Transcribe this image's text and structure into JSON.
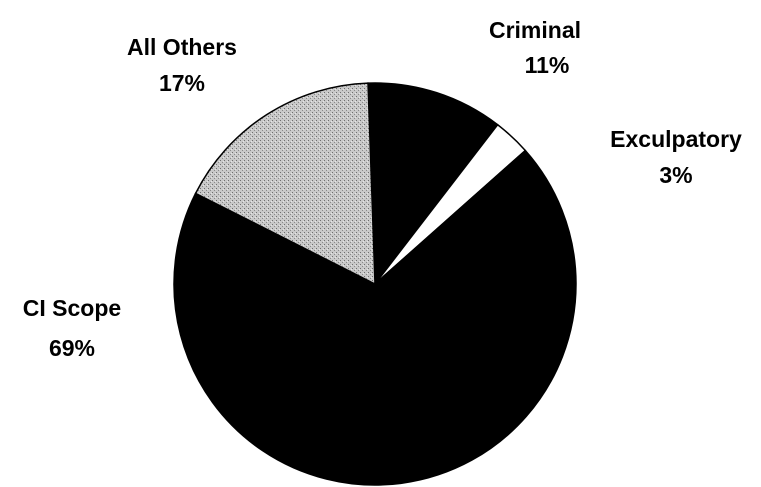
{
  "chart_data": {
    "type": "pie",
    "start_angle_deg": -2,
    "direction": "clockwise",
    "slices": [
      {
        "name": "Criminal",
        "value": 11,
        "label": "11%",
        "color": "#000000",
        "texture": "solid"
      },
      {
        "name": "Exculpatory",
        "value": 3,
        "label": "3%",
        "color": "#ffffff",
        "texture": "solid"
      },
      {
        "name": "CI Scope",
        "value": 69,
        "label": "69%",
        "color": "#000000",
        "texture": "solid"
      },
      {
        "name": "All Others",
        "value": 17,
        "label": "17%",
        "color": "#c8c8c8",
        "texture": "stipple"
      }
    ],
    "legend": "none",
    "title": ""
  }
}
